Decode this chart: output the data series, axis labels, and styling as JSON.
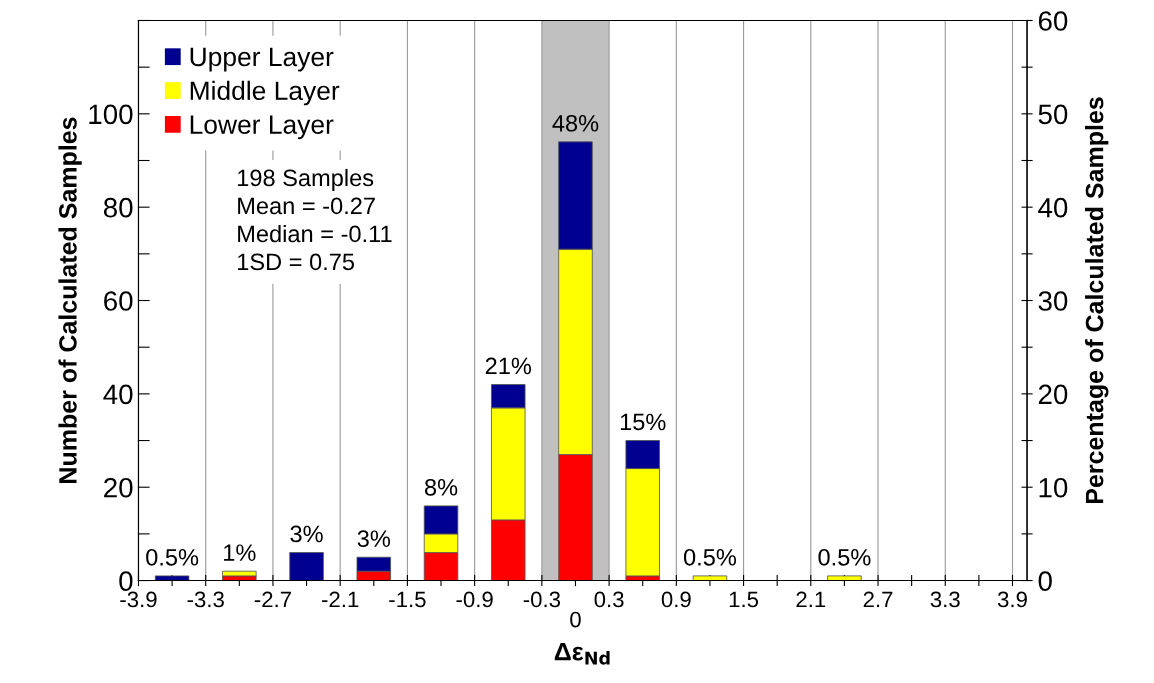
{
  "chart_data": {
    "type": "bar",
    "stacked": true,
    "xlabel": "Δε$_{Nd}$",
    "ylabel": "Number of Calculated Samples",
    "y2label": "Percentage of Calculated Samples",
    "x": [
      -3.6,
      -3.0,
      -2.4,
      -1.8,
      -1.2,
      -0.6,
      0,
      0.6,
      1.2,
      1.8,
      2.4,
      3.0,
      3.6
    ],
    "series": [
      {
        "name": "Lower Layer",
        "color": "#ff0000",
        "values": [
          0,
          1,
          0,
          2,
          6,
          13,
          27,
          1,
          0,
          0,
          0,
          0,
          0
        ]
      },
      {
        "name": "Middle Layer",
        "color": "#ffff00",
        "values": [
          0,
          1,
          0,
          0,
          4,
          24,
          44,
          23,
          1,
          0,
          1,
          0,
          0
        ]
      },
      {
        "name": "Upper Layer",
        "color": "#000090",
        "values": [
          1,
          0,
          6,
          3,
          6,
          5,
          23,
          6,
          0,
          0,
          0,
          0,
          0
        ]
      }
    ],
    "xlim": [
      -3.9,
      4.03
    ],
    "ylim": [
      0,
      120
    ],
    "y2lim": [
      0,
      60
    ],
    "xticks": [
      -3.9,
      {
        "value": -3.6,
        "label": null
      },
      -3.3,
      {
        "value": -3.0,
        "label": null
      },
      -2.7,
      {
        "value": -2.4,
        "label": null
      },
      -2.1,
      {
        "value": -1.8,
        "label": null
      },
      -1.5,
      {
        "value": -1.2,
        "label": null
      },
      -0.9,
      {
        "value": -0.6,
        "label": null
      },
      -0.3,
      {
        "value": 0,
        "label": null
      },
      0.3,
      {
        "value": 0.6,
        "label": null
      },
      0.9,
      {
        "value": 1.2,
        "label": null
      },
      1.5,
      {
        "value": 1.8,
        "label": null
      },
      2.1,
      {
        "value": 2.4,
        "label": null
      },
      2.7,
      {
        "value": 3.0,
        "label": null
      },
      3.3,
      {
        "value": 3.6,
        "label": null
      },
      3.9
    ],
    "yticks": [
      0,
      {
        "value": 10,
        "label": null
      },
      20,
      {
        "value": 30,
        "label": null
      },
      40,
      {
        "value": 50,
        "label": null
      },
      60,
      {
        "value": 70,
        "label": null
      },
      80,
      {
        "value": 90,
        "label": null
      },
      100,
      {
        "value": 110,
        "label": null
      },
      {
        "value": 120,
        "label": null
      }
    ],
    "y2ticks": [
      0,
      {
        "value": 5,
        "label": null
      },
      10,
      {
        "value": 15,
        "label": null
      },
      20,
      {
        "value": 25,
        "label": null
      },
      30,
      {
        "value": 35,
        "label": null
      },
      40,
      {
        "value": 45,
        "label": null
      },
      50,
      {
        "value": 55,
        "label": null
      },
      60
    ],
    "bands": [
      {
        "axis": "x",
        "from": -0.3,
        "to": 0.3,
        "color": "#c0c0c0"
      }
    ],
    "grid": "x",
    "legend": "top left",
    "annotations": [
      {
        "text": "0.5%",
        "x": -3.6,
        "y": 1
      },
      {
        "text": "1%",
        "x": -3.0,
        "y": 2
      },
      {
        "text": "3%",
        "x": -2.4,
        "y": 6
      },
      {
        "text": "3%",
        "x": -1.8,
        "y": 5
      },
      {
        "text": "8%",
        "x": -1.2,
        "y": 16
      },
      {
        "text": "21%",
        "x": -0.6,
        "y": 42
      },
      {
        "text": "48%",
        "x": 0,
        "y": 94
      },
      {
        "text": "15%",
        "x": 0.6,
        "y": 30
      },
      {
        "text": "0.5%",
        "x": 1.2,
        "y": 1
      },
      {
        "text": "0.5%",
        "x": 2.4,
        "y": 1
      },
      "0",
      "198 Samples\nMean = -0.27\nMedian = -0.11\n1SD = 0.75"
    ]
  }
}
